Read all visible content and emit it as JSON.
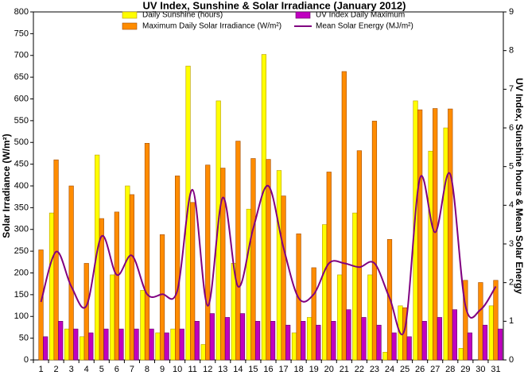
{
  "chart_data": {
    "type": "bar",
    "title": "UV Index, Sunshine & Solar Irradiance (January 2012)",
    "y_label": "Solar Irradiance (W/m²)",
    "y2_label": "UV Index, Sunshine hours & Mean Solar Energy",
    "categories": [
      "1",
      "2",
      "3",
      "4",
      "5",
      "6",
      "7",
      "8",
      "9",
      "10",
      "11",
      "12",
      "13",
      "14",
      "15",
      "16",
      "17",
      "18",
      "19",
      "20",
      "21",
      "22",
      "23",
      "24",
      "25",
      "26",
      "27",
      "28",
      "29",
      "30",
      "31"
    ],
    "ylim": [
      0,
      800
    ],
    "yticks": [
      0,
      50,
      100,
      150,
      200,
      250,
      300,
      350,
      400,
      450,
      500,
      550,
      600,
      650,
      700,
      750,
      800
    ],
    "y2lim": [
      0,
      9
    ],
    "y2ticks": [
      0,
      1,
      2,
      3,
      4,
      5,
      6,
      7,
      8,
      9
    ],
    "series": [
      {
        "name": "Daily Sunshine (hours)",
        "type": "bar",
        "axis": "y2",
        "color": "#ffff00",
        "values": [
          0,
          3.8,
          0.8,
          0.6,
          5.3,
          2.2,
          4.5,
          1.8,
          0.7,
          0.8,
          7.6,
          0.4,
          6.7,
          2.5,
          3.9,
          7.9,
          4.9,
          0.7,
          1.1,
          3.5,
          2.2,
          3.8,
          2.2,
          0.2,
          1.4,
          6.7,
          5.4,
          6.0,
          0.3,
          0,
          1.4
        ]
      },
      {
        "name": "Maximum Daily Solar Irradiance (W/m²)",
        "type": "bar",
        "color": "#ff8c00",
        "values": [
          253,
          460,
          400,
          222,
          325,
          340,
          380,
          498,
          288,
          423,
          362,
          448,
          441,
          503,
          463,
          461,
          377,
          290,
          212,
          432,
          663,
          481,
          549,
          277,
          120,
          575,
          578,
          577,
          183,
          178,
          183
        ]
      },
      {
        "name": "UV Index Daily Maximum",
        "type": "bar",
        "axis": "y2",
        "color": "#c000c0",
        "values": [
          0.6,
          1.0,
          0.8,
          0.7,
          0.8,
          0.8,
          0.8,
          0.8,
          0.7,
          0.8,
          1.0,
          1.2,
          1.1,
          1.2,
          1.0,
          1.0,
          0.9,
          1.0,
          0.9,
          1.0,
          1.3,
          1.1,
          0.9,
          0.7,
          0.6,
          1.0,
          1.1,
          1.3,
          0.7,
          0.9,
          0.8
        ]
      },
      {
        "name": "Mean Solar Energy (MJ/m²)",
        "type": "line",
        "axis": "y2",
        "color": "#800080",
        "values": [
          1.5,
          2.8,
          1.9,
          1.4,
          3.2,
          2.2,
          2.7,
          1.7,
          1.7,
          1.8,
          4.4,
          1.4,
          4.2,
          1.9,
          3.4,
          4.5,
          2.9,
          1.6,
          1.7,
          2.5,
          2.5,
          2.4,
          2.5,
          1.6,
          0.8,
          4.7,
          3.3,
          4.8,
          1.4,
          1.3,
          1.9
        ]
      }
    ]
  }
}
